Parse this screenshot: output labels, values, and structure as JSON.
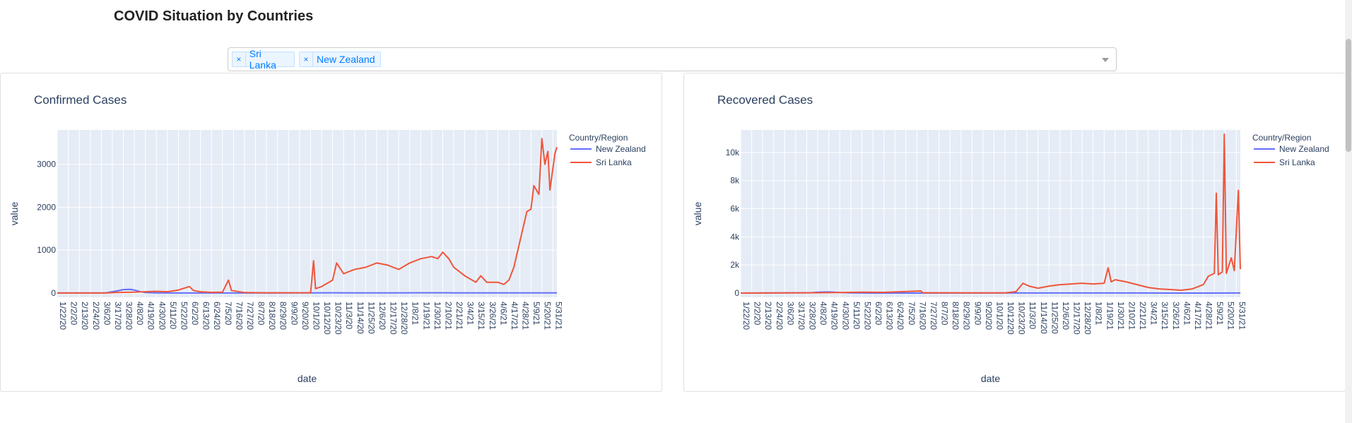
{
  "page_title": "COVID Situation by Countries",
  "dropdown": {
    "selected": [
      "Sri Lanka",
      "New Zealand"
    ],
    "remove_glyph": "×",
    "caret_icon": "chevron-down-icon"
  },
  "colors": {
    "new_zealand": "#636efa",
    "sri_lanka": "#ef553b",
    "plot_bg": "#e5ecf6"
  },
  "chart_data": [
    {
      "type": "line",
      "title": "Confirmed Cases",
      "xlabel": "date",
      "ylabel": "value",
      "ylim": [
        -100,
        3800
      ],
      "yticks": [
        0,
        1000,
        2000,
        3000
      ],
      "ytick_labels": [
        "0",
        "1000",
        "2000",
        "3000"
      ],
      "x_tick_labels": [
        "1/22/20",
        "2/2/20",
        "2/13/20",
        "2/24/20",
        "3/6/20",
        "3/17/20",
        "3/28/20",
        "4/8/20",
        "4/19/20",
        "4/30/20",
        "5/11/20",
        "5/22/20",
        "6/2/20",
        "6/13/20",
        "6/24/20",
        "7/5/20",
        "7/16/20",
        "7/27/20",
        "8/7/20",
        "8/18/20",
        "8/29/20",
        "9/9/20",
        "9/20/20",
        "10/1/20",
        "10/12/20",
        "10/23/20",
        "11/3/20",
        "11/14/20",
        "11/25/20",
        "12/6/20",
        "12/17/20",
        "12/28/20",
        "1/8/21",
        "1/19/21",
        "1/30/21",
        "2/10/21",
        "2/21/21",
        "3/4/21",
        "3/15/21",
        "3/26/21",
        "4/6/21",
        "4/17/21",
        "4/28/21",
        "5/9/21",
        "5/20/21",
        "5/31/21"
      ],
      "x_start": "1/22/20",
      "x_end": "6/4/21",
      "grid": true,
      "legend": {
        "title": "Country/Region",
        "position": "top-right"
      },
      "series": [
        {
          "name": "New Zealand",
          "color": "#636efa",
          "points": [
            [
              "1/22/20",
              0
            ],
            [
              "3/10/20",
              0
            ],
            [
              "3/22/20",
              50
            ],
            [
              "3/28/20",
              80
            ],
            [
              "4/4/20",
              85
            ],
            [
              "4/8/20",
              70
            ],
            [
              "4/14/20",
              30
            ],
            [
              "4/19/20",
              10
            ],
            [
              "4/30/20",
              4
            ],
            [
              "5/20/20",
              1
            ],
            [
              "10/1/20",
              2
            ],
            [
              "10/23/20",
              5
            ],
            [
              "11/14/20",
              4
            ],
            [
              "12/17/20",
              3
            ],
            [
              "1/19/21",
              6
            ],
            [
              "2/21/21",
              4
            ],
            [
              "3/26/21",
              3
            ],
            [
              "4/28/21",
              2
            ],
            [
              "5/31/21",
              3
            ],
            [
              "6/4/21",
              2
            ]
          ]
        },
        {
          "name": "Sri Lanka",
          "color": "#ef553b",
          "points": [
            [
              "1/22/20",
              0
            ],
            [
              "3/10/20",
              0
            ],
            [
              "3/20/20",
              10
            ],
            [
              "4/8/20",
              20
            ],
            [
              "4/19/20",
              30
            ],
            [
              "4/30/20",
              40
            ],
            [
              "5/11/20",
              30
            ],
            [
              "5/22/20",
              70
            ],
            [
              "6/2/20",
              150
            ],
            [
              "6/6/20",
              60
            ],
            [
              "6/13/20",
              30
            ],
            [
              "6/24/20",
              15
            ],
            [
              "7/5/20",
              20
            ],
            [
              "7/11/20",
              300
            ],
            [
              "7/14/20",
              60
            ],
            [
              "7/27/20",
              10
            ],
            [
              "8/18/20",
              5
            ],
            [
              "9/9/20",
              5
            ],
            [
              "10/1/20",
              5
            ],
            [
              "10/4/20",
              750
            ],
            [
              "10/6/20",
              100
            ],
            [
              "10/12/20",
              150
            ],
            [
              "10/23/20",
              300
            ],
            [
              "10/27/20",
              700
            ],
            [
              "11/3/20",
              450
            ],
            [
              "11/14/20",
              550
            ],
            [
              "11/25/20",
              600
            ],
            [
              "12/6/20",
              700
            ],
            [
              "12/17/20",
              650
            ],
            [
              "12/28/20",
              550
            ],
            [
              "1/8/21",
              700
            ],
            [
              "1/19/21",
              800
            ],
            [
              "1/30/21",
              850
            ],
            [
              "2/5/21",
              800
            ],
            [
              "2/10/21",
              950
            ],
            [
              "2/16/21",
              800
            ],
            [
              "2/21/21",
              600
            ],
            [
              "3/4/21",
              400
            ],
            [
              "3/15/21",
              250
            ],
            [
              "3/20/21",
              400
            ],
            [
              "3/26/21",
              250
            ],
            [
              "4/6/21",
              250
            ],
            [
              "4/12/21",
              200
            ],
            [
              "4/17/21",
              300
            ],
            [
              "4/22/21",
              600
            ],
            [
              "4/28/21",
              1200
            ],
            [
              "5/5/21",
              1900
            ],
            [
              "5/9/21",
              1950
            ],
            [
              "5/12/21",
              2500
            ],
            [
              "5/17/21",
              2300
            ],
            [
              "5/20/21",
              3600
            ],
            [
              "5/23/21",
              3000
            ],
            [
              "5/26/21",
              3300
            ],
            [
              "5/28/21",
              2400
            ],
            [
              "5/31/21",
              2900
            ],
            [
              "6/2/21",
              3250
            ],
            [
              "6/4/21",
              3400
            ]
          ]
        }
      ]
    },
    {
      "type": "line",
      "title": "Recovered Cases",
      "xlabel": "date",
      "ylabel": "value",
      "ylim": [
        -300,
        11600
      ],
      "yticks": [
        0,
        2000,
        4000,
        6000,
        8000,
        10000
      ],
      "ytick_labels": [
        "0",
        "2k",
        "4k",
        "6k",
        "8k",
        "10k"
      ],
      "x_tick_labels": [
        "1/22/20",
        "2/2/20",
        "2/13/20",
        "2/24/20",
        "3/6/20",
        "3/17/20",
        "3/28/20",
        "4/8/20",
        "4/19/20",
        "4/30/20",
        "5/11/20",
        "5/22/20",
        "6/2/20",
        "6/13/20",
        "6/24/20",
        "7/5/20",
        "7/16/20",
        "7/27/20",
        "8/7/20",
        "8/18/20",
        "8/29/20",
        "9/9/20",
        "9/20/20",
        "10/1/20",
        "10/12/20",
        "10/23/20",
        "11/3/20",
        "11/14/20",
        "11/25/20",
        "12/6/20",
        "12/17/20",
        "12/28/20",
        "1/8/21",
        "1/19/21",
        "1/30/21",
        "2/10/21",
        "2/21/21",
        "3/4/21",
        "3/15/21",
        "3/26/21",
        "4/6/21",
        "4/17/21",
        "4/28/21",
        "5/9/21",
        "5/20/21",
        "5/31/21"
      ],
      "x_start": "1/22/20",
      "x_end": "6/4/21",
      "grid": true,
      "legend": {
        "title": "Country/Region",
        "position": "top-right"
      },
      "series": [
        {
          "name": "New Zealand",
          "color": "#636efa",
          "points": [
            [
              "1/22/20",
              0
            ],
            [
              "4/1/20",
              20
            ],
            [
              "4/8/20",
              60
            ],
            [
              "4/19/20",
              80
            ],
            [
              "4/30/20",
              40
            ],
            [
              "5/11/20",
              10
            ],
            [
              "6/2/20",
              2
            ],
            [
              "10/23/20",
              5
            ],
            [
              "12/17/20",
              4
            ],
            [
              "2/21/21",
              6
            ],
            [
              "4/28/21",
              3
            ],
            [
              "6/4/21",
              4
            ]
          ]
        },
        {
          "name": "Sri Lanka",
          "color": "#ef553b",
          "points": [
            [
              "1/22/20",
              0
            ],
            [
              "4/8/20",
              20
            ],
            [
              "4/30/20",
              40
            ],
            [
              "5/22/20",
              60
            ],
            [
              "6/13/20",
              50
            ],
            [
              "7/20/20",
              150
            ],
            [
              "7/22/20",
              20
            ],
            [
              "8/18/20",
              20
            ],
            [
              "9/9/20",
              10
            ],
            [
              "10/12/20",
              10
            ],
            [
              "10/23/20",
              100
            ],
            [
              "10/30/20",
              700
            ],
            [
              "11/5/20",
              500
            ],
            [
              "11/14/20",
              350
            ],
            [
              "11/25/20",
              500
            ],
            [
              "12/6/20",
              600
            ],
            [
              "12/17/20",
              650
            ],
            [
              "12/28/20",
              700
            ],
            [
              "1/8/21",
              650
            ],
            [
              "1/19/21",
              700
            ],
            [
              "1/23/21",
              1800
            ],
            [
              "1/26/21",
              800
            ],
            [
              "1/30/21",
              950
            ],
            [
              "2/10/21",
              800
            ],
            [
              "2/21/21",
              600
            ],
            [
              "3/4/21",
              400
            ],
            [
              "3/15/21",
              300
            ],
            [
              "3/26/21",
              250
            ],
            [
              "4/6/21",
              200
            ],
            [
              "4/17/21",
              300
            ],
            [
              "4/28/21",
              600
            ],
            [
              "5/3/21",
              1200
            ],
            [
              "5/9/21",
              1400
            ],
            [
              "5/11/21",
              7100
            ],
            [
              "5/13/21",
              1300
            ],
            [
              "5/17/21",
              1500
            ],
            [
              "5/19/21",
              11300
            ],
            [
              "5/21/21",
              1400
            ],
            [
              "5/26/21",
              2500
            ],
            [
              "5/29/21",
              1600
            ],
            [
              "6/2/21",
              7300
            ],
            [
              "6/4/21",
              1700
            ]
          ]
        }
      ]
    }
  ]
}
